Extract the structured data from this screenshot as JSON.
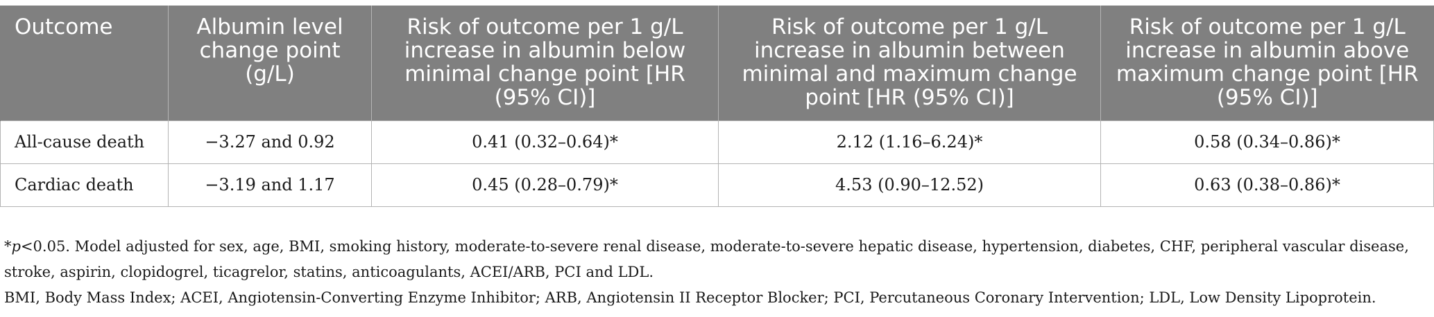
{
  "table": {
    "headers": [
      "Outcome",
      "Albumin level change point (g/L)",
      "Risk of outcome per 1 g/L increase in albumin below minimal change point [HR (95% CI)]",
      "Risk of outcome per 1 g/L increase in albumin between minimal and maximum change point [HR (95% CI)]",
      "Risk of outcome per 1 g/L increase in albumin above maximum change point [HR (95% CI)]"
    ],
    "rows": [
      [
        "All-cause death",
        "−3.27 and 0.92",
        "0.41 (0.32–0.64)*",
        "2.12 (1.16–6.24)*",
        "0.58 (0.34–0.86)*"
      ],
      [
        "Cardiac death",
        "−3.19 and 1.17",
        "0.45 (0.28–0.79)*",
        "4.53 (0.90–12.52)",
        "0.63 (0.38–0.86)*"
      ]
    ]
  },
  "footnotes": {
    "significance_star": "*",
    "significance_p": "p",
    "significance_rest": "<0.05. Model adjusted for sex, age, BMI, smoking history, moderate-to-severe renal disease, moderate-to-severe hepatic disease, hypertension, diabetes, CHF, peripheral vascular disease, stroke, aspirin, clopidogrel, ticagrelor, statins, anticoagulants, ACEI/ARB, PCI and LDL.",
    "abbreviations": "BMI, Body Mass Index; ACEI, Angiotensin-Converting Enzyme Inhibitor; ARB, Angiotensin II Receptor Blocker; PCI, Percutaneous Coronary Intervention; LDL, Low Density Lipoprotein."
  },
  "colors": {
    "header_background": "#808080",
    "header_text": "#ffffff",
    "border": "#b3b3b3"
  }
}
